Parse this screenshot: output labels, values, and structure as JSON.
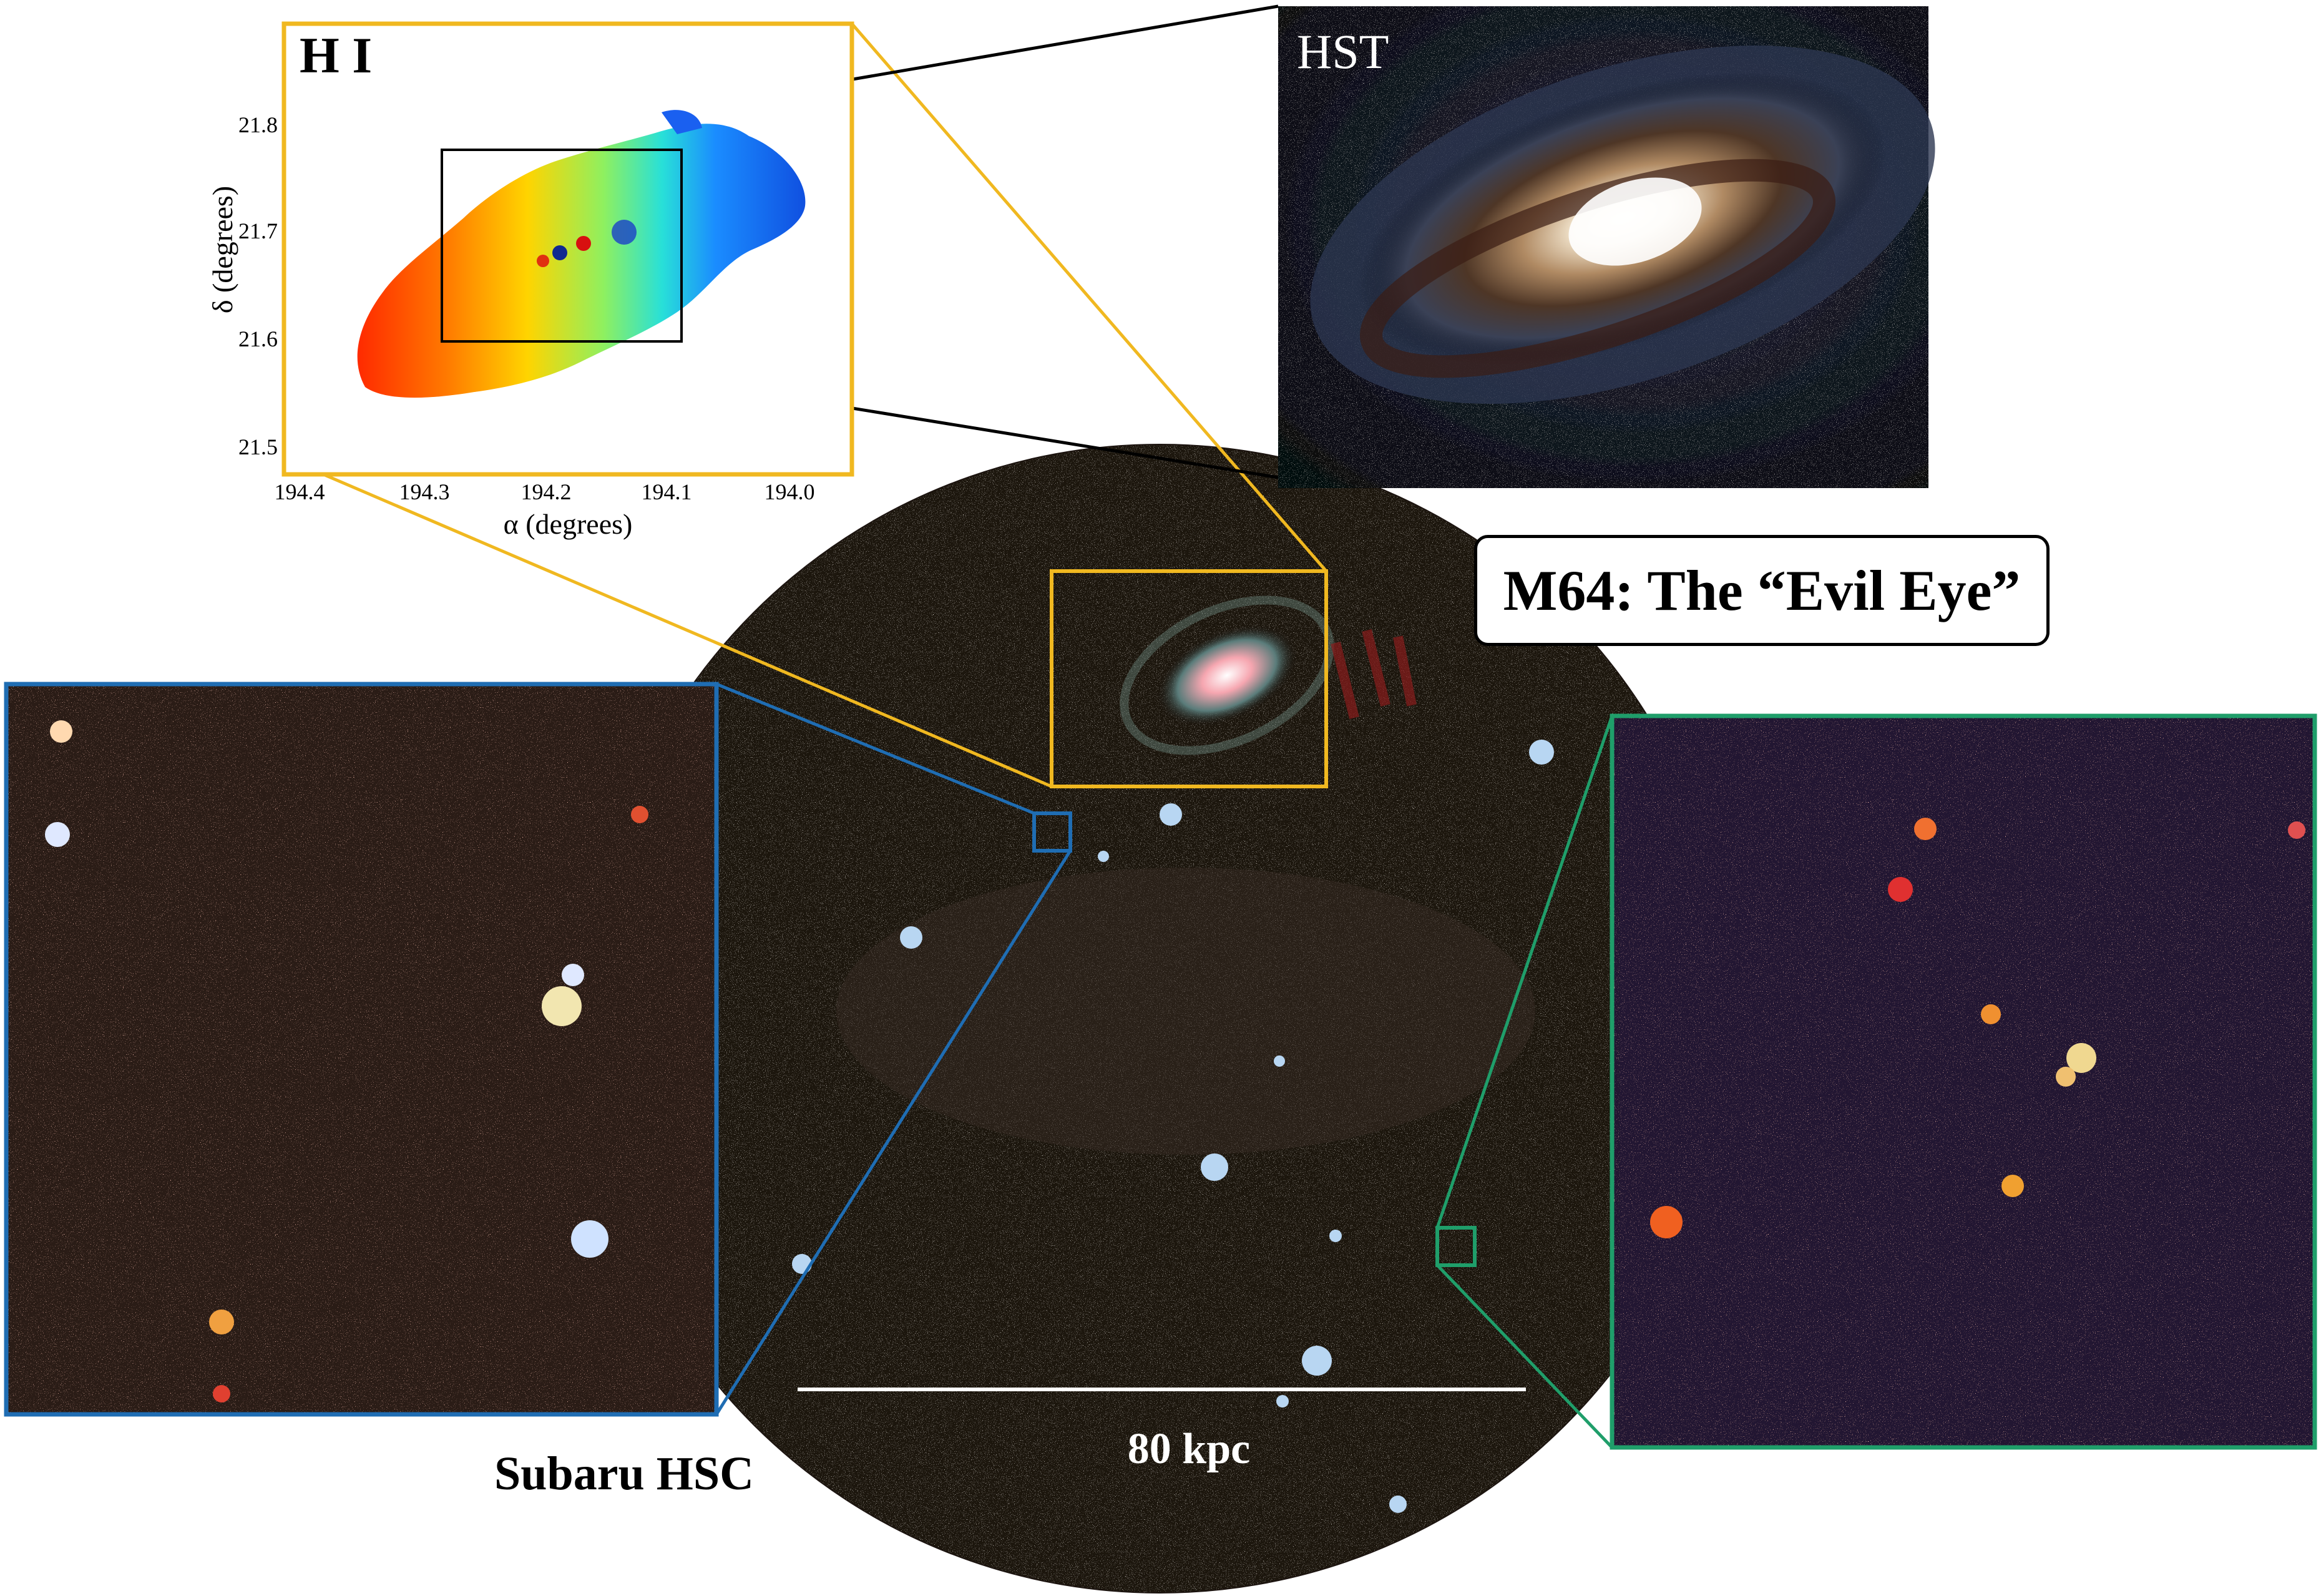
{
  "title": "M64: The “Evil Eye”",
  "panels": {
    "hi_map": {
      "label": "H I",
      "xlabel": "α (degrees)",
      "ylabel": "δ (degrees)",
      "xticks": [
        "194.4",
        "194.3",
        "194.2",
        "194.1",
        "194.0"
      ],
      "yticks": [
        "21.8",
        "21.7",
        "21.6",
        "21.5"
      ],
      "frame_color": "#F0B820"
    },
    "hst": {
      "label": "HST"
    },
    "subaru": {
      "label": "Subaru HSC",
      "scale_bar": "80 kpc"
    },
    "inset_left": {
      "frame_color": "#1F6DB3"
    },
    "inset_right": {
      "frame_color": "#1F9E6A"
    }
  },
  "chart_data": {
    "type": "heatmap",
    "xlabel": "α (degrees)",
    "ylabel": "δ (degrees)",
    "xlim": [
      194.4,
      193.95
    ],
    "ylim": [
      21.47,
      21.85
    ],
    "colormap": "jet",
    "zoom_box": {
      "x": [
        194.3,
        194.1
      ],
      "y": [
        21.6,
        21.78
      ]
    }
  }
}
